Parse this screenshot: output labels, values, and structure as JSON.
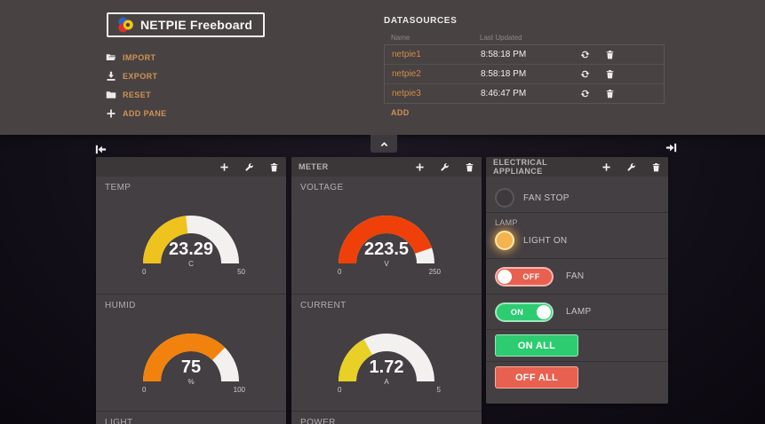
{
  "header": {
    "logo": {
      "text": "NETPIE Freeboard"
    },
    "menu": [
      {
        "label": "IMPORT",
        "icon": "folder-open-icon"
      },
      {
        "label": "EXPORT",
        "icon": "download-icon"
      },
      {
        "label": "RESET",
        "icon": "folder-icon"
      },
      {
        "label": "ADD PANE",
        "icon": "plus-icon"
      }
    ],
    "datasources": {
      "title": "DATASOURCES",
      "columns": {
        "name": "Name",
        "updated": "Last Updated"
      },
      "rows": [
        {
          "name": "netpie1",
          "updated": "8:58:18 PM"
        },
        {
          "name": "netpie2",
          "updated": "8:58:18 PM"
        },
        {
          "name": "netpie3",
          "updated": "8:46:47 PM"
        }
      ],
      "add_label": "ADD"
    }
  },
  "colors": {
    "accent_orange": "#cf9254",
    "gauge_track": "#f3f1f0",
    "green": "#2ecc71",
    "red": "#e8604f",
    "indicator_on": "#f3b34d"
  },
  "panes": [
    {
      "title": "",
      "widgets": [
        {
          "type": "gauge",
          "title": "TEMP",
          "value": 23.29,
          "units": "C",
          "min": 0,
          "max": 50,
          "color": "#eec31e"
        },
        {
          "type": "gauge",
          "title": "HUMID",
          "value": 75,
          "units": "%",
          "min": 0,
          "max": 100,
          "color": "#f2820e"
        },
        {
          "type": "gauge",
          "title": "LIGHT"
        }
      ]
    },
    {
      "title": "METER",
      "widgets": [
        {
          "type": "gauge",
          "title": "VOLTAGE",
          "value": 223.5,
          "units": "V",
          "min": 0,
          "max": 250,
          "color": "#f04009"
        },
        {
          "type": "gauge",
          "title": "CURRENT",
          "value": 1.72,
          "units": "A",
          "min": 0,
          "max": 5,
          "color": "#e9d026"
        },
        {
          "type": "gauge",
          "title": "POWER"
        }
      ]
    },
    {
      "title": "ELECTRICAL APPLIANCE",
      "widgets": [
        {
          "type": "indicator",
          "label": "FAN STOP",
          "on": false
        },
        {
          "type": "indicator",
          "title": "LAMP",
          "label": "LIGHT ON",
          "on": true
        },
        {
          "type": "toggle",
          "state": "OFF",
          "label": "FAN",
          "on": false
        },
        {
          "type": "toggle",
          "state": "ON",
          "label": "LAMP",
          "on": true
        },
        {
          "type": "button",
          "label": "ON ALL",
          "color": "green"
        },
        {
          "type": "button",
          "label": "OFF ALL",
          "color": "red"
        }
      ]
    }
  ]
}
